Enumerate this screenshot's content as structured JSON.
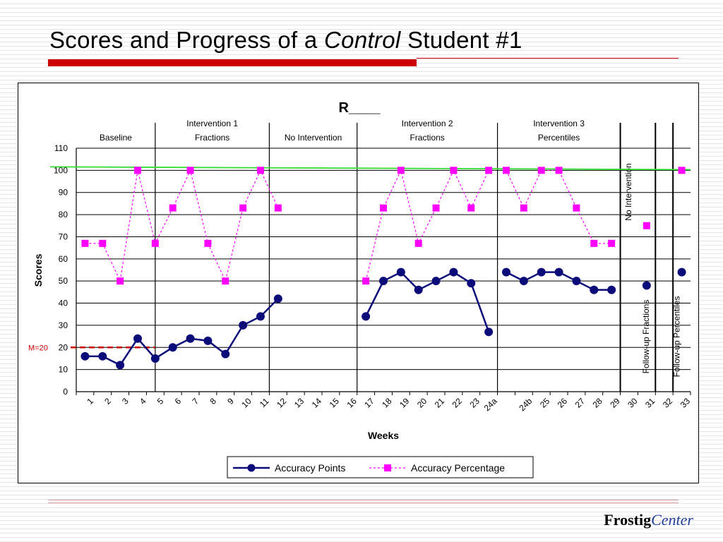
{
  "slide": {
    "title_pre": "Scores and Progress of a ",
    "title_em": "Control",
    "title_post": " Student #1",
    "logo_main": "Frostig",
    "logo_accent": "Center"
  },
  "chart_data": {
    "type": "line",
    "title": "R____",
    "xlabel": "Weeks",
    "ylabel": "Scores",
    "categories": [
      "1",
      "2",
      "3",
      "4",
      "5",
      "6",
      "7",
      "8",
      "9",
      "10",
      "11",
      "12",
      "13",
      "14",
      "15",
      "16",
      "17",
      "18",
      "19",
      "20",
      "21",
      "22",
      "23",
      "24a",
      "24b",
      "25",
      "26",
      "27",
      "28",
      "29",
      "30",
      "31",
      "32",
      "33"
    ],
    "ylim": [
      0,
      110
    ],
    "yticks": [
      0,
      10,
      20,
      30,
      40,
      50,
      60,
      70,
      80,
      90,
      100,
      110
    ],
    "grid": true,
    "legend_position": "bottom",
    "series": [
      {
        "name": "Accuracy Points",
        "color": "#0b0b7a",
        "segments": [
          {
            "x": [
              1,
              2,
              3,
              4,
              5,
              6,
              7,
              8,
              9,
              10,
              11,
              12
            ],
            "y": [
              16,
              16,
              12,
              24,
              15,
              20,
              24,
              23,
              17,
              30,
              34,
              42
            ]
          },
          {
            "x": [
              17,
              18,
              19,
              20,
              21,
              22,
              23,
              24
            ],
            "y": [
              34,
              50,
              54,
              46,
              50,
              54,
              49,
              27
            ]
          },
          {
            "x": [
              25,
              26,
              27,
              28,
              29,
              30,
              31
            ],
            "y": [
              54,
              50,
              54,
              54,
              50,
              46,
              46
            ]
          },
          {
            "x": [
              33
            ],
            "y": [
              48
            ]
          },
          {
            "x": [
              35
            ],
            "y": [
              54
            ]
          }
        ]
      },
      {
        "name": "Accuracy Percentage",
        "color": "#ff00ff",
        "segments": [
          {
            "x": [
              1,
              2,
              3,
              4,
              5,
              6,
              7,
              8,
              9,
              10,
              11,
              12
            ],
            "y": [
              67,
              67,
              50,
              100,
              67,
              83,
              100,
              67,
              50,
              83,
              100,
              83
            ]
          },
          {
            "x": [
              17,
              18,
              19,
              20,
              21,
              22,
              23,
              24
            ],
            "y": [
              50,
              83,
              100,
              67,
              83,
              100,
              83,
              100
            ]
          },
          {
            "x": [
              25,
              26,
              27,
              28,
              29,
              30,
              31
            ],
            "y": [
              100,
              83,
              100,
              100,
              83,
              67,
              67
            ]
          },
          {
            "x": [
              33
            ],
            "y": [
              75
            ]
          },
          {
            "x": [
              35
            ],
            "y": [
              100
            ]
          }
        ]
      }
    ],
    "phases": [
      {
        "lines": [
          "Baseline"
        ]
      },
      {
        "lines": [
          "Intervention 1",
          "Fractions"
        ]
      },
      {
        "lines": [
          "No Intervention"
        ]
      },
      {
        "lines": [
          "Intervention 2",
          "Fractions"
        ]
      },
      {
        "lines": [
          "Intervention 3",
          "Percentiles"
        ]
      }
    ],
    "vertical_labels": [
      "No Intervention",
      "Follow-up Fractions",
      "Follow-up Percentiles"
    ],
    "reference_lines": [
      {
        "value": 20,
        "label": "M=20",
        "color": "#cc0000"
      },
      {
        "value": 100,
        "color": "#33dd33"
      }
    ]
  }
}
